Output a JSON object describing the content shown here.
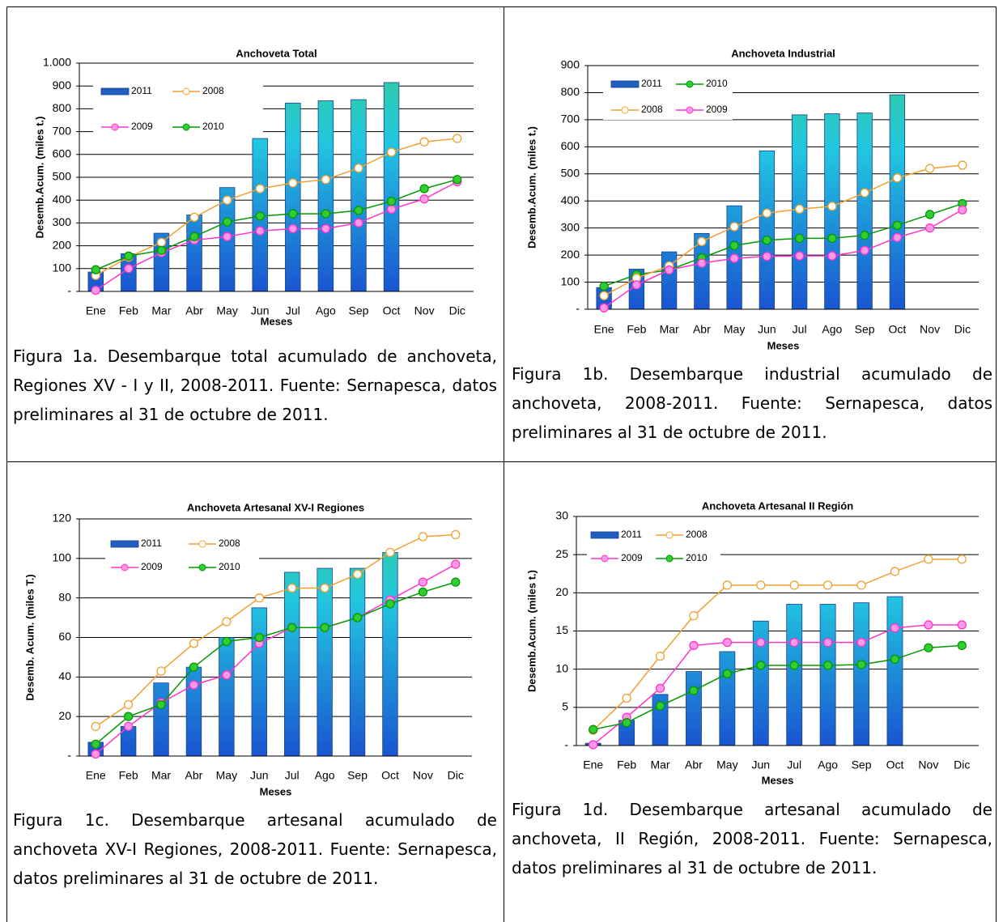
{
  "chart_data": [
    {
      "type": "combo",
      "title": "Anchoveta Total",
      "x_label": "Meses",
      "y_label": "Desemb.Acum. (miles t.)",
      "caption": "Figura 1a. Desembarque total acumulado de anchoveta, Regiones XV - I y II, 2008-2011. Fuente: Sernapesca, datos preliminares al 31 de octubre de 2011.",
      "categories": [
        "Ene",
        "Feb",
        "Mar",
        "Abr",
        "May",
        "Jun",
        "Jul",
        "Ago",
        "Sep",
        "Oct",
        "Nov",
        "Dic"
      ],
      "ylim": [
        0,
        1000
      ],
      "yticks": [
        {
          "value": 0,
          "label": "-"
        },
        100,
        200,
        300,
        400,
        500,
        600,
        700,
        800,
        900,
        {
          "value": 1000,
          "label": "1.000"
        }
      ],
      "grid": true,
      "series": [
        {
          "name": "2011",
          "type": "bar",
          "color": "#1f5fbf",
          "values": [
            85,
            165,
            255,
            335,
            455,
            670,
            825,
            835,
            840,
            915,
            null,
            null
          ]
        },
        {
          "name": "2008",
          "type": "line",
          "color": "#f0a030",
          "marker_fill": "#ffffff",
          "values": [
            70,
            150,
            215,
            325,
            400,
            450,
            475,
            490,
            540,
            610,
            655,
            670
          ]
        },
        {
          "name": "2009",
          "type": "line",
          "color": "#ff33cc",
          "marker_fill": "#ff99e6",
          "values": [
            5,
            100,
            170,
            225,
            240,
            265,
            275,
            275,
            300,
            360,
            405,
            480
          ]
        },
        {
          "name": "2010",
          "type": "line",
          "color": "#009900",
          "marker_fill": "#33cc33",
          "values": [
            95,
            155,
            180,
            240,
            305,
            330,
            340,
            340,
            355,
            395,
            450,
            490
          ]
        }
      ]
    },
    {
      "type": "combo",
      "title": "Anchoveta Industrial",
      "x_label": "Meses",
      "y_label": "Desemb.Acum. (miles t.)",
      "caption": "Figura 1b. Desembarque industrial acumulado de anchoveta, 2008-2011. Fuente: Sernapesca, datos preliminares al 31 de octubre de 2011.",
      "categories": [
        "Ene",
        "Feb",
        "Mar",
        "Abr",
        "May",
        "Jun",
        "Jul",
        "Ago",
        "Sep",
        "Oct",
        "Nov",
        "Dic"
      ],
      "ylim": [
        0,
        900
      ],
      "yticks": [
        {
          "value": 0,
          "label": "-"
        },
        100,
        200,
        300,
        400,
        500,
        600,
        700,
        800,
        900
      ],
      "grid": true,
      "series": [
        {
          "name": "2011",
          "type": "bar",
          "color": "#1f5fbf",
          "values": [
            80,
            148,
            212,
            280,
            382,
            585,
            718,
            722,
            725,
            792,
            null,
            null
          ]
        },
        {
          "name": "2010",
          "type": "line",
          "color": "#009900",
          "marker_fill": "#33cc33",
          "values": [
            85,
            128,
            145,
            190,
            235,
            255,
            262,
            262,
            273,
            310,
            350,
            390
          ]
        },
        {
          "name": "2008",
          "type": "line",
          "color": "#f0a030",
          "marker_fill": "#ffffff",
          "values": [
            50,
            115,
            160,
            250,
            305,
            355,
            370,
            380,
            430,
            485,
            520,
            532
          ]
        },
        {
          "name": "2009",
          "type": "line",
          "color": "#ff33cc",
          "marker_fill": "#ff99e6",
          "values": [
            5,
            90,
            145,
            170,
            188,
            195,
            197,
            197,
            217,
            265,
            300,
            367
          ]
        }
      ]
    },
    {
      "type": "combo",
      "title": "Anchoveta Artesanal XV-I Regiones",
      "x_label": "Meses",
      "y_label": "Desemb. Acum. (miles T.)",
      "caption": "Figura 1c. Desembarque artesanal acumulado de anchoveta XV-I Regiones, 2008-2011. Fuente: Sernapesca, datos preliminares al 31 de octubre de 2011.",
      "categories": [
        "Ene",
        "Feb",
        "Mar",
        "Abr",
        "May",
        "Jun",
        "Jul",
        "Ago",
        "Sep",
        "Oct",
        "Nov",
        "Dic"
      ],
      "ylim": [
        0,
        120
      ],
      "yticks": [
        {
          "value": 0,
          "label": "-"
        },
        20,
        40,
        60,
        80,
        100,
        120
      ],
      "grid": true,
      "series": [
        {
          "name": "2011",
          "type": "bar",
          "color": "#1f5fbf",
          "values": [
            7,
            15,
            37,
            45,
            60,
            75,
            93,
            95,
            95,
            103,
            null,
            null
          ]
        },
        {
          "name": "2008",
          "type": "line",
          "color": "#f0a030",
          "marker_fill": "#ffffff",
          "values": [
            15,
            26,
            43,
            57,
            68,
            80,
            85,
            85,
            92,
            103,
            111,
            112
          ]
        },
        {
          "name": "2009",
          "type": "line",
          "color": "#ff33cc",
          "marker_fill": "#ff99e6",
          "values": [
            1,
            15,
            27,
            36,
            41,
            57,
            65,
            65,
            70,
            79,
            88,
            97
          ]
        },
        {
          "name": "2010",
          "type": "line",
          "color": "#009900",
          "marker_fill": "#33cc33",
          "values": [
            6,
            20,
            26,
            45,
            58,
            60,
            65,
            65,
            70,
            77,
            83,
            88
          ]
        }
      ]
    },
    {
      "type": "combo",
      "title": "Anchoveta Artesanal II Región",
      "x_label": "Meses",
      "y_label": "Desemb.Acum. (miles t.)",
      "caption": "Figura 1d. Desembarque artesanal acumulado de anchoveta, II Región, 2008-2011. Fuente: Sernapesca, datos preliminares al 31 de octubre de 2011.",
      "categories": [
        "Ene",
        "Feb",
        "Mar",
        "Abr",
        "May",
        "Jun",
        "Jul",
        "Ago",
        "Sep",
        "Oct",
        "Nov",
        "Dic"
      ],
      "ylim": [
        0,
        30
      ],
      "yticks": [
        {
          "value": 0,
          "label": "-"
        },
        5,
        10,
        15,
        20,
        25,
        30
      ],
      "grid": true,
      "series": [
        {
          "name": "2011",
          "type": "bar",
          "color": "#1f5fbf",
          "values": [
            0.3,
            3.3,
            6.7,
            9.7,
            12.3,
            16.3,
            18.5,
            18.5,
            18.7,
            19.5,
            null,
            null
          ]
        },
        {
          "name": "2008",
          "type": "line",
          "color": "#f0a030",
          "marker_fill": "#ffffff",
          "values": [
            2,
            6.2,
            11.7,
            17,
            21,
            21,
            21,
            21,
            21,
            22.8,
            24.4,
            24.4
          ]
        },
        {
          "name": "2009",
          "type": "line",
          "color": "#ff33cc",
          "marker_fill": "#ff99e6",
          "values": [
            0.1,
            3.7,
            7.5,
            13.1,
            13.5,
            13.5,
            13.5,
            13.5,
            13.5,
            15.4,
            15.8,
            15.8
          ]
        },
        {
          "name": "2010",
          "type": "line",
          "color": "#009900",
          "marker_fill": "#33cc33",
          "values": [
            2.1,
            3,
            5.2,
            7.2,
            9.4,
            10.5,
            10.5,
            10.5,
            10.6,
            11.3,
            12.8,
            13.1
          ]
        }
      ]
    }
  ]
}
